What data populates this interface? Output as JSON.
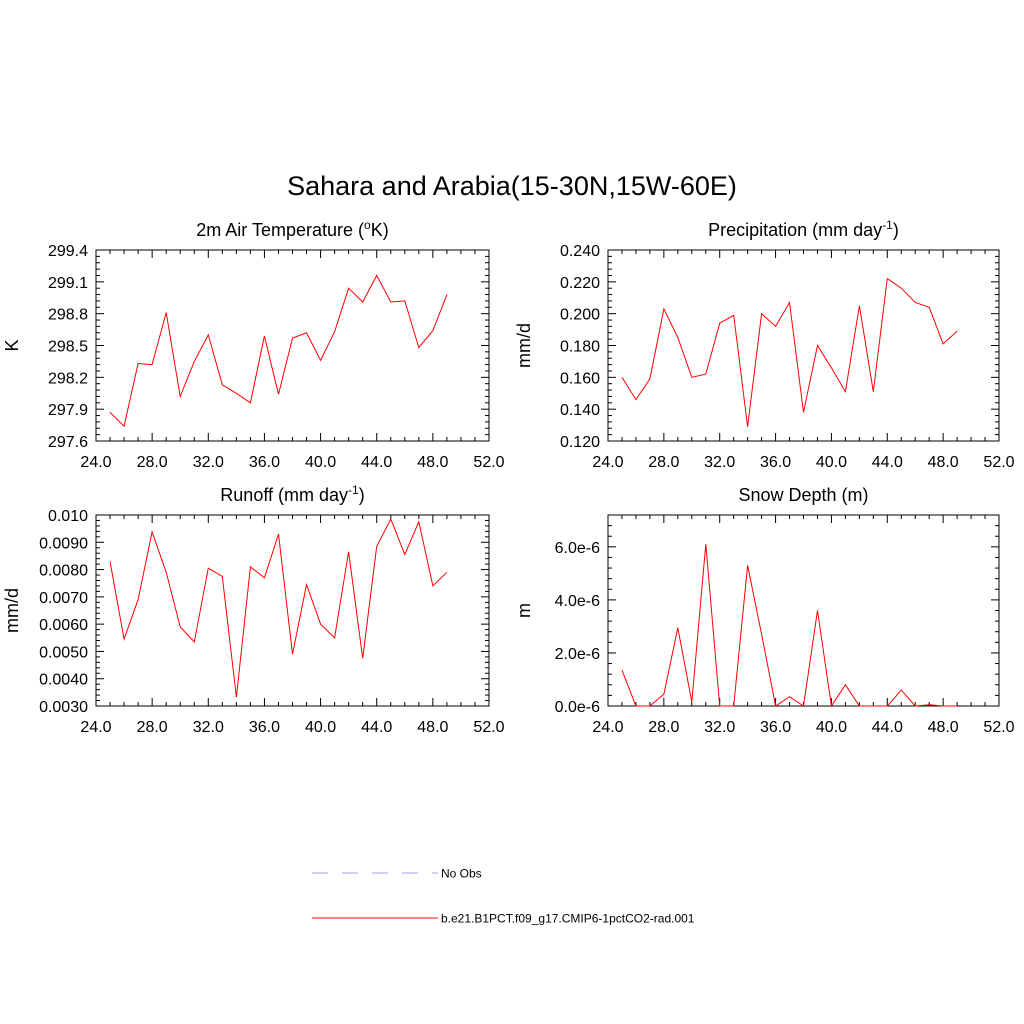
{
  "figure": {
    "title": "Sahara and Arabia(15-30N,15W-60E)"
  },
  "legend": {
    "items": [
      {
        "label": "No Obs",
        "color": "#a0a0ff",
        "dashed": true
      },
      {
        "label": "b.e21.B1PCT.f09_g17.CMIP6-1pctCO2-rad.001",
        "color": "#ff0000",
        "dashed": false
      }
    ]
  },
  "chart_data": [
    {
      "type": "line",
      "title": "2m Air Temperature (",
      "title_sup": "o",
      "title_tail": "K)",
      "ylabel": "K",
      "xlim": [
        24,
        52
      ],
      "ylim": [
        297.6,
        299.4
      ],
      "xticks": [
        24,
        28,
        32,
        36,
        40,
        44,
        48,
        52
      ],
      "xtick_labels": [
        "24.0",
        "28.0",
        "32.0",
        "36.0",
        "40.0",
        "44.0",
        "48.0",
        "52.0"
      ],
      "yticks": [
        297.6,
        297.9,
        298.2,
        298.5,
        298.8,
        299.1,
        299.4
      ],
      "ytick_labels": [
        "297.6",
        "297.9",
        "298.2",
        "298.5",
        "298.8",
        "299.1",
        "299.4"
      ],
      "series": [
        {
          "color": "#ff0000",
          "x": [
            25,
            26,
            27,
            28,
            29,
            30,
            31,
            32,
            33,
            34,
            35,
            36,
            37,
            38,
            39,
            40,
            41,
            42,
            43,
            44,
            45,
            46,
            47,
            48,
            49
          ],
          "y": [
            297.87,
            297.74,
            298.33,
            298.32,
            298.81,
            298.02,
            298.35,
            298.6,
            298.13,
            298.05,
            297.96,
            298.59,
            298.04,
            298.57,
            298.62,
            298.36,
            298.63,
            299.04,
            298.91,
            299.16,
            298.91,
            298.92,
            298.48,
            298.64,
            298.98
          ]
        }
      ]
    },
    {
      "type": "line",
      "title": "Precipitation (mm day",
      "title_sup": "-1",
      "title_tail": ")",
      "ylabel": "mm/d",
      "xlim": [
        24,
        52
      ],
      "ylim": [
        0.12,
        0.24
      ],
      "xticks": [
        24,
        28,
        32,
        36,
        40,
        44,
        48,
        52
      ],
      "xtick_labels": [
        "24.0",
        "28.0",
        "32.0",
        "36.0",
        "40.0",
        "44.0",
        "48.0",
        "52.0"
      ],
      "yticks": [
        0.12,
        0.14,
        0.16,
        0.18,
        0.2,
        0.22,
        0.24
      ],
      "ytick_labels": [
        "0.120",
        "0.140",
        "0.160",
        "0.180",
        "0.200",
        "0.220",
        "0.240"
      ],
      "series": [
        {
          "color": "#ff0000",
          "x": [
            25,
            26,
            27,
            28,
            29,
            30,
            31,
            32,
            33,
            34,
            35,
            36,
            37,
            38,
            39,
            40,
            41,
            42,
            43,
            44,
            45,
            46,
            47,
            48,
            49
          ],
          "y": [
            0.16,
            0.146,
            0.159,
            0.203,
            0.185,
            0.16,
            0.162,
            0.194,
            0.199,
            0.129,
            0.2,
            0.192,
            0.207,
            0.138,
            0.18,
            0.166,
            0.151,
            0.205,
            0.151,
            0.222,
            0.216,
            0.207,
            0.204,
            0.181,
            0.189
          ]
        }
      ]
    },
    {
      "type": "line",
      "title": "Runoff (mm day",
      "title_sup": "-1",
      "title_tail": ")",
      "ylabel": "mm/d",
      "xlim": [
        24,
        52
      ],
      "ylim": [
        0.003,
        0.01
      ],
      "xticks": [
        24,
        28,
        32,
        36,
        40,
        44,
        48,
        52
      ],
      "xtick_labels": [
        "24.0",
        "28.0",
        "32.0",
        "36.0",
        "40.0",
        "44.0",
        "48.0",
        "52.0"
      ],
      "yticks": [
        0.003,
        0.004,
        0.005,
        0.006,
        0.007,
        0.008,
        0.009,
        0.01
      ],
      "ytick_labels": [
        "0.0030",
        "0.0040",
        "0.0050",
        "0.0060",
        "0.0070",
        "0.0080",
        "0.0090",
        "0.010"
      ],
      "series": [
        {
          "color": "#ff0000",
          "x": [
            25,
            26,
            27,
            28,
            29,
            30,
            31,
            32,
            33,
            34,
            35,
            36,
            37,
            38,
            39,
            40,
            41,
            42,
            43,
            44,
            45,
            46,
            47,
            48,
            49
          ],
          "y": [
            0.0083,
            0.00545,
            0.0069,
            0.00938,
            0.0079,
            0.0059,
            0.00535,
            0.00805,
            0.00775,
            0.00332,
            0.0081,
            0.0077,
            0.0093,
            0.0049,
            0.00745,
            0.006,
            0.0055,
            0.00865,
            0.00475,
            0.00885,
            0.00985,
            0.00855,
            0.00975,
            0.0074,
            0.0079
          ]
        }
      ]
    },
    {
      "type": "line",
      "title": "Snow Depth (m)",
      "title_sup": "",
      "title_tail": "",
      "ylabel": "m",
      "xlim": [
        24,
        52
      ],
      "ylim": [
        0,
        7.2e-06
      ],
      "xticks": [
        24,
        28,
        32,
        36,
        40,
        44,
        48,
        52
      ],
      "xtick_labels": [
        "24.0",
        "28.0",
        "32.0",
        "36.0",
        "40.0",
        "44.0",
        "48.0",
        "52.0"
      ],
      "yticks": [
        0,
        2e-06,
        4e-06,
        6e-06
      ],
      "ytick_labels": [
        "0.0e-6",
        "2.0e-6",
        "4.0e-6",
        "6.0e-6"
      ],
      "series": [
        {
          "color": "#ff0000",
          "x": [
            25,
            26,
            27,
            28,
            29,
            30,
            31,
            32,
            33,
            34,
            35,
            36,
            37,
            38,
            39,
            40,
            41,
            42,
            43,
            44,
            45,
            46,
            47,
            48,
            49
          ],
          "y": [
            1.35e-06,
            0,
            0,
            4.5e-07,
            2.95e-06,
            1.5e-07,
            6.1e-06,
            0,
            0,
            5.3e-06,
            2.7e-06,
            0,
            3.5e-07,
            0,
            3.6e-06,
            0,
            8e-07,
            0,
            0,
            0,
            6e-07,
            0,
            5e-08,
            0,
            0
          ]
        }
      ]
    }
  ]
}
